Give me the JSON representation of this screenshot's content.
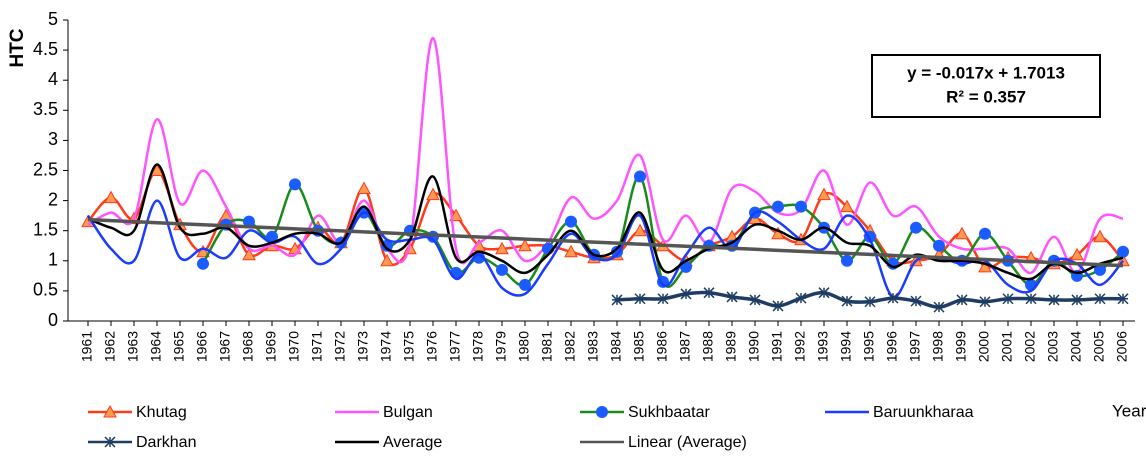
{
  "chart_data": {
    "type": "line",
    "y_label": "HTC",
    "x_label": "Year",
    "categories": [
      "1961",
      "1962",
      "1963",
      "1964",
      "1965",
      "1966",
      "1967",
      "1968",
      "1969",
      "1970",
      "1971",
      "1972",
      "1973",
      "1974",
      "1975",
      "1976",
      "1977",
      "1978",
      "1979",
      "1980",
      "1981",
      "1982",
      "1983",
      "1984",
      "1985",
      "1986",
      "1987",
      "1988",
      "1989",
      "1990",
      "1991",
      "1992",
      "1993",
      "1994",
      "1995",
      "1996",
      "1997",
      "1998",
      "1999",
      "2000",
      "2001",
      "2002",
      "2003",
      "2004",
      "2005",
      "2006"
    ],
    "ylim": [
      0,
      5
    ],
    "yticks": [
      0,
      0.5,
      1,
      1.5,
      2,
      2.5,
      3,
      3.5,
      4,
      4.5,
      5
    ],
    "grid": false,
    "smooth": true,
    "annotation": {
      "equation": "y = -0.017x + 1.7013",
      "r_squared": "R² = 0.357"
    },
    "series": [
      {
        "name": "Khutag",
        "color": "#ff3b1a",
        "marker": "triangle",
        "marker_color": "#ff9a50",
        "values": [
          1.65,
          2.05,
          1.7,
          2.5,
          1.6,
          1.15,
          1.75,
          1.1,
          1.25,
          1.2,
          1.55,
          1.3,
          2.2,
          1.0,
          1.2,
          2.1,
          1.75,
          1.25,
          1.2,
          1.25,
          1.25,
          1.15,
          1.05,
          1.1,
          1.5,
          1.25,
          1.0,
          1.25,
          1.4,
          1.7,
          1.45,
          1.35,
          2.1,
          1.9,
          1.5,
          1.0,
          1.0,
          1.1,
          1.45,
          0.9,
          1.05,
          1.05,
          0.95,
          1.1,
          1.4,
          1.0
        ]
      },
      {
        "name": "Bulgan",
        "color": "#ff55ff",
        "marker": "none",
        "values": [
          1.6,
          1.8,
          1.7,
          3.35,
          1.95,
          2.5,
          1.9,
          1.2,
          1.25,
          1.1,
          1.75,
          1.3,
          2.0,
          1.2,
          1.3,
          4.7,
          1.2,
          1.3,
          1.5,
          1.0,
          1.3,
          2.05,
          1.7,
          2.0,
          2.75,
          1.35,
          1.75,
          1.3,
          2.2,
          2.15,
          1.8,
          1.85,
          2.5,
          1.6,
          2.3,
          1.75,
          1.9,
          1.4,
          1.2,
          1.2,
          1.2,
          0.8,
          1.4,
          0.8,
          1.7,
          1.7
        ]
      },
      {
        "name": "Sukhbaatar",
        "color": "#1a8a1a",
        "marker": "circle",
        "marker_color": "#1a5cff",
        "values": [
          null,
          null,
          null,
          null,
          null,
          0.95,
          1.6,
          1.65,
          1.4,
          2.27,
          1.5,
          1.3,
          1.8,
          1.25,
          1.5,
          1.4,
          0.8,
          1.05,
          0.85,
          0.6,
          1.2,
          1.65,
          1.1,
          1.15,
          2.4,
          0.65,
          0.9,
          1.25,
          1.25,
          1.8,
          1.9,
          1.9,
          1.55,
          1.0,
          1.4,
          0.95,
          1.55,
          1.25,
          1.0,
          1.45,
          1.0,
          0.6,
          1.0,
          0.75,
          0.85,
          1.15
        ]
      },
      {
        "name": "Baruunkharaa",
        "color": "#1a3cff",
        "marker": "none",
        "values": [
          1.75,
          1.2,
          1.0,
          2.0,
          1.05,
          1.2,
          1.05,
          1.5,
          1.3,
          1.4,
          0.95,
          1.2,
          1.8,
          1.35,
          1.35,
          1.35,
          0.7,
          1.1,
          0.55,
          0.45,
          0.95,
          1.45,
          1.05,
          1.1,
          1.75,
          0.6,
          1.1,
          1.55,
          1.2,
          1.8,
          1.65,
          1.35,
          1.2,
          1.75,
          1.35,
          0.4,
          1.0,
          1.05,
          0.95,
          1.0,
          0.6,
          0.5,
          1.0,
          0.95,
          0.6,
          1.0
        ]
      },
      {
        "name": "Darkhan",
        "color": "#1f3d63",
        "marker": "star",
        "values": [
          null,
          null,
          null,
          null,
          null,
          null,
          null,
          null,
          null,
          null,
          null,
          null,
          null,
          null,
          null,
          null,
          null,
          null,
          null,
          null,
          null,
          null,
          null,
          0.35,
          0.37,
          0.37,
          0.45,
          0.47,
          0.4,
          0.35,
          0.25,
          0.38,
          0.47,
          0.33,
          0.32,
          0.38,
          0.33,
          0.23,
          0.35,
          0.32,
          0.37,
          0.37,
          0.35,
          0.35,
          0.37,
          0.37
        ]
      },
      {
        "name": "Average",
        "color": "#000000",
        "marker": "none",
        "values": [
          1.7,
          1.55,
          1.5,
          2.6,
          1.55,
          1.45,
          1.55,
          1.25,
          1.3,
          1.45,
          1.45,
          1.3,
          1.9,
          1.2,
          1.35,
          2.4,
          1.05,
          1.15,
          1.0,
          0.8,
          1.1,
          1.5,
          1.1,
          1.2,
          1.8,
          0.85,
          1.0,
          1.2,
          1.3,
          1.6,
          1.5,
          1.35,
          1.55,
          1.3,
          1.25,
          0.9,
          1.1,
          1.0,
          1.0,
          0.95,
          0.8,
          0.7,
          0.95,
          0.8,
          0.95,
          1.05
        ]
      },
      {
        "name": "Linear (Average)",
        "color": "#555555",
        "marker": "none",
        "smooth": false,
        "values": [
          1.684,
          1.667,
          1.65,
          1.633,
          1.616,
          1.599,
          1.582,
          1.565,
          1.548,
          1.531,
          1.514,
          1.497,
          1.48,
          1.463,
          1.446,
          1.429,
          1.412,
          1.395,
          1.378,
          1.361,
          1.344,
          1.327,
          1.31,
          1.293,
          1.276,
          1.259,
          1.242,
          1.225,
          1.208,
          1.191,
          1.174,
          1.157,
          1.14,
          1.123,
          1.106,
          1.089,
          1.072,
          1.055,
          1.038,
          1.021,
          1.004,
          0.987,
          0.97,
          0.953,
          0.936,
          0.919
        ]
      }
    ]
  }
}
